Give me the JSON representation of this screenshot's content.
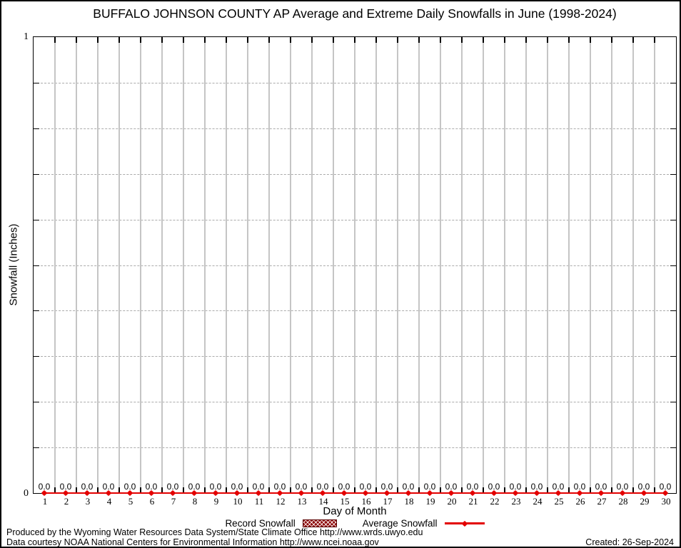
{
  "window": {
    "background": "#ffffff",
    "border_color": "#000000"
  },
  "colors": {
    "average_line_red": "#e30000",
    "record_bar_maroon": "#8b0000",
    "vertical_grid_gray": "#c5c5c5",
    "dashed_grid_gray": "#ababab",
    "axis_black": "#000000"
  },
  "chart_data": {
    "type": "bar",
    "title": "BUFFALO JOHNSON COUNTY AP Average and Extreme Daily Snowfalls in June (1998-2024)",
    "xlabel": "Day of Month",
    "ylabel": "Snowfall (Inches)",
    "ylim": [
      0,
      1
    ],
    "y_minor_step": 0.1,
    "axes": {
      "y_top_label": "1",
      "y_bottom_label": "0"
    },
    "grid": {
      "vertical": "solid gray lines at day boundaries",
      "horizontal": "dashed gray lines every 0.1"
    },
    "legend_position": "bottom-center",
    "categories": [
      1,
      2,
      3,
      4,
      5,
      6,
      7,
      8,
      9,
      10,
      11,
      12,
      13,
      14,
      15,
      16,
      17,
      18,
      19,
      20,
      21,
      22,
      23,
      24,
      25,
      26,
      27,
      28,
      29,
      30
    ],
    "series": [
      {
        "name": "Record Snowfall",
        "type": "bar",
        "style": "hatched",
        "color": "#8b0000",
        "values": [
          0,
          0,
          0,
          0,
          0,
          0,
          0,
          0,
          0,
          0,
          0,
          0,
          0,
          0,
          0,
          0,
          0,
          0,
          0,
          0,
          0,
          0,
          0,
          0,
          0,
          0,
          0,
          0,
          0,
          0
        ]
      },
      {
        "name": "Average Snowfall",
        "type": "line",
        "marker": "filled-point",
        "color": "#e30000",
        "values": [
          0,
          0,
          0,
          0,
          0,
          0,
          0,
          0,
          0,
          0,
          0,
          0,
          0,
          0,
          0,
          0,
          0,
          0,
          0,
          0,
          0,
          0,
          0,
          0,
          0,
          0,
          0,
          0,
          0,
          0
        ]
      }
    ],
    "point_labels": [
      "0.0",
      "0.0",
      "0.0",
      "0.0",
      "0.0",
      "0.0",
      "0.0",
      "0.0",
      "0.0",
      "0.0",
      "0.0",
      "0.0",
      "0.0",
      "0.0",
      "0.0",
      "0.0",
      "0.0",
      "0.0",
      "0.0",
      "0.0",
      "0.0",
      "0.0",
      "0.0",
      "0.0",
      "0.0",
      "0.0",
      "0.0",
      "0.0",
      "0.0",
      "0.0"
    ]
  },
  "legend": {
    "record_label": "Record Snowfall",
    "average_label": "Average Snowfall"
  },
  "footer": {
    "line1": "Produced by the Wyoming Water Resources Data System/State Climate Office http://www.wrds.uwyo.edu",
    "line2": "Data courtesy NOAA National Centers for Environmental Information http://www.ncei.noaa.gov",
    "created": "Created: 26-Sep-2024"
  }
}
